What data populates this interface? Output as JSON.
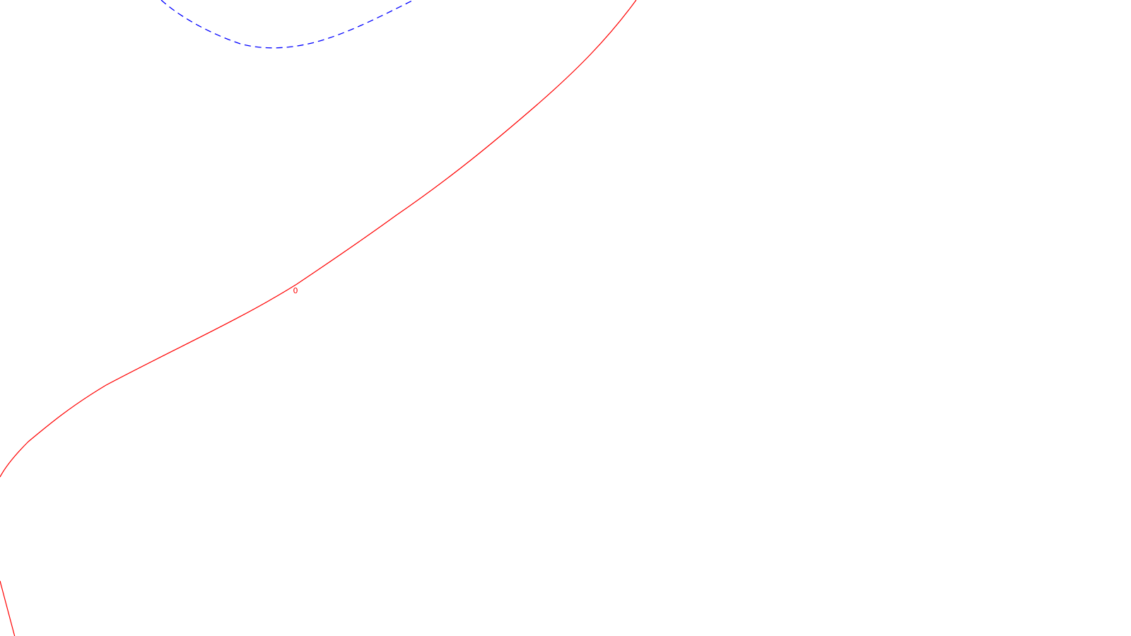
{
  "contours": {
    "zero": {
      "label": "0",
      "color": "#ff0000",
      "style": "solid"
    },
    "negative": {
      "color": "#0000ff",
      "style": "dashed"
    }
  }
}
